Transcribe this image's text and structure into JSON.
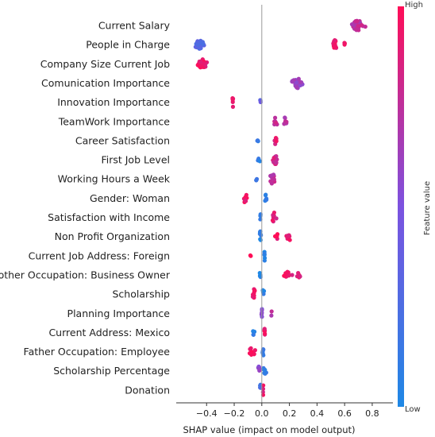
{
  "chart_data": {
    "type": "scatter",
    "subtype": "shap-beeswarm",
    "title": "",
    "xlabel": "SHAP value (impact on model output)",
    "ylabel": "",
    "xlim": [
      -0.62,
      0.95
    ],
    "xticks": [
      -0.4,
      -0.2,
      0.0,
      0.2,
      0.4,
      0.6,
      0.8
    ],
    "xtick_labels": [
      "−0.4",
      "−0.2",
      "0.0",
      "0.2",
      "0.4",
      "0.6",
      "0.8"
    ],
    "grid": false,
    "zero_line": true,
    "colorbar": {
      "label": "Feature value",
      "high_label": "High",
      "low_label": "Low",
      "low_color": "#1e88e5",
      "high_color": "#ff0d57",
      "position": "right"
    },
    "features": [
      {
        "name": "Current Salary",
        "clusters": [
          {
            "x": 0.7,
            "spread": 0.06,
            "value": 0.75,
            "density": 34,
            "height": 1.0
          }
        ]
      },
      {
        "name": "People in Charge",
        "clusters": [
          {
            "x": -0.45,
            "spread": 0.05,
            "value": 0.3,
            "density": 30,
            "height": 0.8
          },
          {
            "x": 0.53,
            "spread": 0.02,
            "value": 0.95,
            "density": 14,
            "height": 1.0
          },
          {
            "x": 0.6,
            "spread": 0.01,
            "value": 0.95,
            "density": 3,
            "height": 0.4
          }
        ]
      },
      {
        "name": "Company Size Current Job",
        "clusters": [
          {
            "x": -0.43,
            "spread": 0.04,
            "value": 0.92,
            "density": 26,
            "height": 1.0
          }
        ]
      },
      {
        "name": "Comunication Importance",
        "clusters": [
          {
            "x": 0.26,
            "spread": 0.06,
            "value": 0.62,
            "density": 34,
            "height": 1.0
          }
        ]
      },
      {
        "name": "Innovation Importance",
        "clusters": [
          {
            "x": -0.21,
            "spread": 0.005,
            "value": 0.95,
            "density": 6,
            "height": 1.0
          },
          {
            "x": -0.01,
            "spread": 0.004,
            "value": 0.35,
            "density": 3,
            "height": 0.5
          }
        ]
      },
      {
        "name": "TeamWork Importance",
        "clusters": [
          {
            "x": 0.1,
            "spread": 0.02,
            "value": 0.78,
            "density": 8,
            "height": 1.0
          },
          {
            "x": 0.17,
            "spread": 0.02,
            "value": 0.7,
            "density": 6,
            "height": 0.8
          }
        ]
      },
      {
        "name": "Career Satisfaction",
        "clusters": [
          {
            "x": -0.03,
            "spread": 0.005,
            "value": 0.1,
            "density": 3,
            "height": 0.4
          },
          {
            "x": 0.1,
            "spread": 0.01,
            "value": 0.9,
            "density": 6,
            "height": 1.0
          }
        ]
      },
      {
        "name": "First Job Level",
        "clusters": [
          {
            "x": -0.02,
            "spread": 0.01,
            "value": 0.1,
            "density": 4,
            "height": 0.5
          },
          {
            "x": 0.1,
            "spread": 0.03,
            "value": 0.82,
            "density": 12,
            "height": 1.0
          }
        ]
      },
      {
        "name": "Working Hours a Week",
        "clusters": [
          {
            "x": -0.04,
            "spread": 0.01,
            "value": 0.2,
            "density": 3,
            "height": 0.3
          },
          {
            "x": 0.08,
            "spread": 0.03,
            "value": 0.75,
            "density": 12,
            "height": 1.0
          }
        ]
      },
      {
        "name": "Gender: Woman",
        "clusters": [
          {
            "x": -0.12,
            "spread": 0.02,
            "value": 0.95,
            "density": 8,
            "height": 1.0
          },
          {
            "x": 0.03,
            "spread": 0.01,
            "value": 0.05,
            "density": 6,
            "height": 0.8
          }
        ]
      },
      {
        "name": "Satisfaction with Income",
        "clusters": [
          {
            "x": -0.01,
            "spread": 0.008,
            "value": 0.15,
            "density": 4,
            "height": 0.6
          },
          {
            "x": 0.09,
            "spread": 0.02,
            "value": 0.88,
            "density": 8,
            "height": 1.0
          }
        ]
      },
      {
        "name": "Non Profit Organization",
        "clusters": [
          {
            "x": -0.01,
            "spread": 0.01,
            "value": 0.05,
            "density": 8,
            "height": 1.0
          },
          {
            "x": 0.11,
            "spread": 0.02,
            "value": 0.95,
            "density": 5,
            "height": 0.5
          },
          {
            "x": 0.2,
            "spread": 0.03,
            "value": 0.92,
            "density": 8,
            "height": 0.7
          }
        ]
      },
      {
        "name": "Current Job Address: Foreign",
        "clusters": [
          {
            "x": -0.08,
            "spread": 0.004,
            "value": 0.95,
            "density": 2,
            "height": 0.5
          },
          {
            "x": 0.02,
            "spread": 0.004,
            "value": 0.05,
            "density": 6,
            "height": 1.0
          }
        ]
      },
      {
        "name": "Mother Occupation: Business Owner",
        "clusters": [
          {
            "x": -0.01,
            "spread": 0.008,
            "value": 0.05,
            "density": 6,
            "height": 1.0
          },
          {
            "x": 0.19,
            "spread": 0.04,
            "value": 0.92,
            "density": 12,
            "height": 0.6
          },
          {
            "x": 0.27,
            "spread": 0.02,
            "value": 0.85,
            "density": 5,
            "height": 0.5
          }
        ]
      },
      {
        "name": "Scholarship",
        "clusters": [
          {
            "x": -0.06,
            "spread": 0.02,
            "value": 0.95,
            "density": 10,
            "height": 1.0
          },
          {
            "x": 0.01,
            "spread": 0.01,
            "value": 0.05,
            "density": 6,
            "height": 0.9
          }
        ]
      },
      {
        "name": "Planning Importance",
        "clusters": [
          {
            "x": 0.0,
            "spread": 0.004,
            "value": 0.5,
            "density": 6,
            "height": 1.0
          },
          {
            "x": 0.07,
            "spread": 0.004,
            "value": 0.7,
            "density": 2,
            "height": 0.6
          }
        ]
      },
      {
        "name": "Current Address: Mexico",
        "clusters": [
          {
            "x": -0.06,
            "spread": 0.01,
            "value": 0.1,
            "density": 4,
            "height": 0.5
          },
          {
            "x": 0.02,
            "spread": 0.004,
            "value": 0.95,
            "density": 6,
            "height": 1.0
          }
        ]
      },
      {
        "name": "Father Occupation: Employee",
        "clusters": [
          {
            "x": -0.07,
            "spread": 0.03,
            "value": 0.95,
            "density": 10,
            "height": 0.8
          },
          {
            "x": 0.01,
            "spread": 0.008,
            "value": 0.1,
            "density": 6,
            "height": 1.0
          }
        ]
      },
      {
        "name": "Scholarship Percentage",
        "clusters": [
          {
            "x": -0.02,
            "spread": 0.01,
            "value": 0.6,
            "density": 6,
            "height": 1.0
          },
          {
            "x": 0.02,
            "spread": 0.02,
            "value": 0.1,
            "density": 8,
            "height": 0.9
          }
        ]
      },
      {
        "name": "Donation",
        "clusters": [
          {
            "x": -0.01,
            "spread": 0.008,
            "value": 0.2,
            "density": 4,
            "height": 1.0
          },
          {
            "x": 0.01,
            "spread": 0.006,
            "value": 0.9,
            "density": 4,
            "height": 1.0
          }
        ]
      }
    ]
  }
}
